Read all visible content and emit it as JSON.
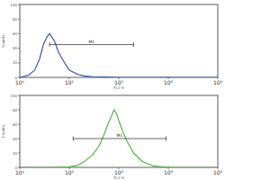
{
  "chart_data": [
    {
      "type": "line",
      "color": "#2b4aa8",
      "log": "x",
      "x_label": "FL1-H",
      "y_label": "Counts",
      "x": [
        1,
        1.5,
        2,
        2.5,
        3,
        3.5,
        4,
        5,
        6,
        8,
        10,
        15,
        20,
        30,
        50,
        100,
        1000,
        10000
      ],
      "values": [
        0,
        3,
        10,
        25,
        45,
        55,
        60,
        50,
        35,
        20,
        10,
        4,
        2,
        1,
        0.5,
        0,
        0,
        0
      ],
      "xlim": [
        1,
        10000
      ],
      "xticks": [
        {
          "value": 1,
          "label": "10⁰"
        },
        {
          "value": 10,
          "label": "10¹"
        },
        {
          "value": 100,
          "label": "10²"
        },
        {
          "value": 1000,
          "label": "10³"
        },
        {
          "value": 10000,
          "label": "10⁴"
        }
      ],
      "ylim": [
        0,
        100
      ],
      "yticks": [
        0,
        20,
        40,
        60,
        80,
        100
      ],
      "annotations": [
        {
          "text": "M1",
          "x": [
            4,
            200
          ],
          "y": 45
        }
      ]
    },
    {
      "type": "line",
      "color": "#4caf3c",
      "log": "x",
      "x_label": "FL1-H",
      "y_label": "Counts",
      "x": [
        1,
        5,
        10,
        15,
        20,
        30,
        40,
        50,
        60,
        70,
        80,
        90,
        100,
        120,
        150,
        200,
        300,
        500,
        1000,
        10000
      ],
      "values": [
        0,
        0,
        1,
        3,
        8,
        18,
        30,
        45,
        60,
        70,
        80,
        75,
        65,
        50,
        35,
        20,
        8,
        2,
        0,
        0
      ],
      "xlim": [
        1,
        10000
      ],
      "xticks": [
        {
          "value": 1,
          "label": "10⁰"
        },
        {
          "value": 10,
          "label": "10¹"
        },
        {
          "value": 100,
          "label": "10²"
        },
        {
          "value": 1000,
          "label": "10³"
        },
        {
          "value": 10000,
          "label": "10⁴"
        }
      ],
      "ylim": [
        0,
        100
      ],
      "yticks": [
        0,
        20,
        40,
        60,
        80,
        100
      ],
      "annotations": [
        {
          "text": "M1",
          "x": [
            12,
            900
          ],
          "y": 40
        }
      ]
    }
  ]
}
